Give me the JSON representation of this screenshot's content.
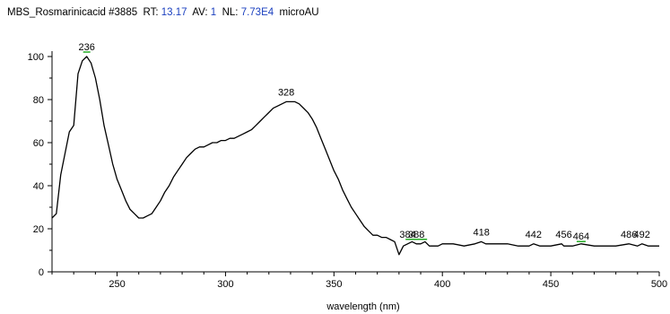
{
  "header": {
    "sample_name": "MBS_Rosmarinicacid",
    "scan_number": "#3885",
    "rt_label": "RT:",
    "rt_value": "13.17",
    "av_label": "AV:",
    "av_value": "1",
    "nl_label": "NL:",
    "nl_value": "7.73E4",
    "units": "microAU"
  },
  "chart_data": {
    "type": "line",
    "title": "",
    "xlabel": "wavelength (nm)",
    "ylabel": "",
    "xlim": [
      220,
      500
    ],
    "ylim": [
      0,
      100
    ],
    "x_ticks": [
      250,
      300,
      350,
      400,
      450,
      500
    ],
    "y_ticks": [
      0,
      20,
      40,
      60,
      80,
      100
    ],
    "grid": false,
    "line_color": "#000000",
    "marker_color": "#22aa22",
    "series": [
      {
        "x": [
          220,
          222,
          224,
          226,
          228,
          230,
          232,
          234,
          236,
          238,
          240,
          242,
          244,
          246,
          248,
          250,
          252,
          254,
          256,
          258,
          260,
          262,
          264,
          266,
          268,
          270,
          272,
          274,
          276,
          278,
          280,
          282,
          284,
          286,
          288,
          290,
          292,
          294,
          296,
          298,
          300,
          302,
          304,
          306,
          308,
          310,
          312,
          314,
          316,
          318,
          320,
          322,
          324,
          326,
          328,
          330,
          332,
          334,
          336,
          338,
          340,
          342,
          344,
          346,
          348,
          350,
          352,
          354,
          356,
          358,
          360,
          362,
          364,
          366,
          368,
          370,
          372,
          374,
          376,
          378,
          380,
          382,
          384,
          386,
          388,
          390,
          392,
          394,
          396,
          398,
          400,
          405,
          410,
          415,
          418,
          420,
          425,
          430,
          435,
          440,
          442,
          445,
          450,
          455,
          456,
          460,
          464,
          470,
          475,
          480,
          486,
          490,
          492,
          495,
          500
        ],
        "y": [
          25,
          27,
          45,
          55,
          65,
          68,
          92,
          98,
          100,
          97,
          90,
          80,
          68,
          59,
          50,
          43,
          38,
          33,
          29,
          27,
          25,
          25,
          26,
          27,
          30,
          33,
          37,
          40,
          44,
          47,
          50,
          53,
          55,
          57,
          58,
          58,
          59,
          60,
          60,
          61,
          61,
          62,
          62,
          63,
          64,
          65,
          66,
          68,
          70,
          72,
          74,
          76,
          77,
          78,
          79,
          79,
          79,
          78,
          76,
          74,
          71,
          67,
          62,
          57,
          52,
          47,
          43,
          38,
          34,
          30,
          27,
          24,
          21,
          19,
          17,
          17,
          16,
          16,
          15,
          14,
          8,
          12,
          13,
          14,
          13,
          13,
          14,
          12,
          12,
          12,
          13,
          13,
          12,
          13,
          14,
          13,
          13,
          13,
          12,
          12,
          13,
          12,
          12,
          13,
          12,
          12,
          13,
          12,
          12,
          12,
          13,
          12,
          13,
          12,
          12
        ]
      }
    ],
    "peak_labels": [
      {
        "x": 236,
        "y": 100,
        "text": "236"
      },
      {
        "x": 328,
        "y": 79,
        "text": "328"
      },
      {
        "x": 384,
        "y": 13,
        "text": "384"
      },
      {
        "x": 388,
        "y": 13,
        "text": "388"
      },
      {
        "x": 418,
        "y": 14,
        "text": "418"
      },
      {
        "x": 442,
        "y": 13,
        "text": "442"
      },
      {
        "x": 456,
        "y": 13,
        "text": "456"
      },
      {
        "x": 464,
        "y": 12,
        "text": "464"
      },
      {
        "x": 486,
        "y": 13,
        "text": "486"
      },
      {
        "x": 492,
        "y": 13,
        "text": "492"
      }
    ]
  }
}
